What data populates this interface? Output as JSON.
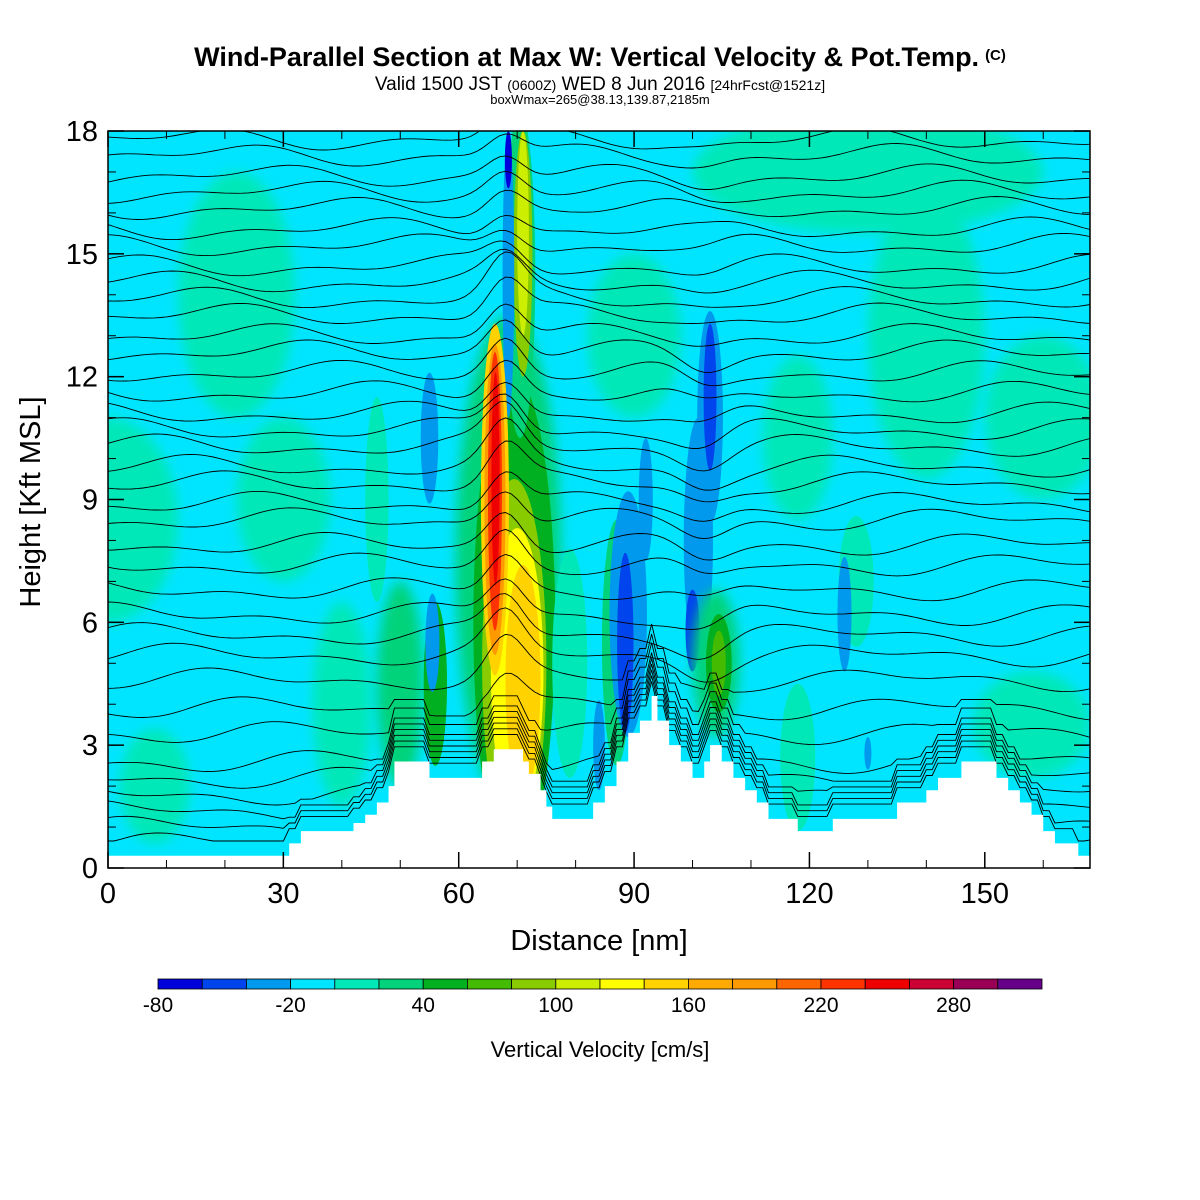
{
  "header": {
    "title": "Wind-Parallel Section at Max W: Vertical Velocity & Pot.Temp.",
    "title_tag": "(C)",
    "valid_prefix": "Valid 1500 JST",
    "valid_zulu": "(0600Z)",
    "valid_date": "WED 8 Jun 2016",
    "forecast": "[24hrFcst@1521z]",
    "boxline": "boxWmax=265@38.13,139.87,2185m"
  },
  "chart_data": {
    "type": "heatmap",
    "xlabel": "Distance [nm]",
    "ylabel": "Height [Kft MSL]",
    "xlim": [
      0,
      168
    ],
    "ylim": [
      0,
      18
    ],
    "x_ticks": [
      0,
      30,
      60,
      90,
      120,
      150
    ],
    "y_ticks": [
      0,
      3,
      6,
      9,
      12,
      15,
      18
    ],
    "x_tick_labels": [
      "0",
      "30",
      "60",
      "90",
      "120",
      "150"
    ],
    "y_tick_labels": [
      "0",
      "3",
      "6",
      "9",
      "12",
      "15",
      "18"
    ],
    "colorbar": {
      "title": "Vertical Velocity [cm/s]",
      "levels": [
        -80,
        -60,
        -40,
        -20,
        0,
        20,
        40,
        60,
        80,
        100,
        120,
        140,
        160,
        180,
        200,
        220,
        240,
        260,
        280,
        300,
        320
      ],
      "colors": [
        "#0000dd",
        "#0044ee",
        "#0099ee",
        "#00e5ff",
        "#00e8b8",
        "#00d37a",
        "#00b020",
        "#44bb00",
        "#88cc00",
        "#ccee00",
        "#ffff00",
        "#ffd200",
        "#ffaa00",
        "#ff9900",
        "#ff6600",
        "#ff3300",
        "#ee0000",
        "#cc0033",
        "#990055",
        "#660088"
      ],
      "tick_values": [
        -80,
        -20,
        40,
        100,
        160,
        220,
        280
      ],
      "tick_labels": [
        "-80",
        "-20",
        "40",
        "100",
        "160",
        "220",
        "280"
      ]
    },
    "terrain_kft": [
      [
        0,
        0.3
      ],
      [
        30,
        0.3
      ],
      [
        31,
        0.6
      ],
      [
        33,
        0.9
      ],
      [
        41,
        0.9
      ],
      [
        42,
        1.1
      ],
      [
        44,
        1.3
      ],
      [
        46,
        1.6
      ],
      [
        48,
        2.0
      ],
      [
        49,
        2.6
      ],
      [
        53,
        2.6
      ],
      [
        55,
        2.2
      ],
      [
        63,
        2.2
      ],
      [
        64,
        2.6
      ],
      [
        66,
        2.9
      ],
      [
        69,
        2.9
      ],
      [
        71,
        2.6
      ],
      [
        72,
        2.3
      ],
      [
        74,
        1.9
      ],
      [
        75,
        1.5
      ],
      [
        76,
        1.2
      ],
      [
        81,
        1.2
      ],
      [
        83,
        1.6
      ],
      [
        85,
        2.0
      ],
      [
        87,
        2.6
      ],
      [
        89,
        3.3
      ],
      [
        91,
        3.6
      ],
      [
        93,
        4.2
      ],
      [
        94,
        3.6
      ],
      [
        96,
        3.0
      ],
      [
        98,
        2.6
      ],
      [
        100,
        2.2
      ],
      [
        102,
        2.6
      ],
      [
        103,
        3.0
      ],
      [
        105,
        2.6
      ],
      [
        107,
        2.2
      ],
      [
        109,
        1.9
      ],
      [
        111,
        1.6
      ],
      [
        113,
        1.2
      ],
      [
        116,
        1.2
      ],
      [
        118,
        0.9
      ],
      [
        123,
        0.9
      ],
      [
        124,
        1.2
      ],
      [
        134,
        1.2
      ],
      [
        135,
        1.6
      ],
      [
        140,
        1.9
      ],
      [
        142,
        2.2
      ],
      [
        146,
        2.6
      ],
      [
        150,
        2.6
      ],
      [
        152,
        2.2
      ],
      [
        154,
        1.9
      ],
      [
        156,
        1.6
      ],
      [
        158,
        1.3
      ],
      [
        160,
        0.9
      ],
      [
        162,
        0.6
      ],
      [
        166,
        0.3
      ],
      [
        168,
        0.3
      ]
    ],
    "velocity_cells": [
      {
        "x": 0,
        "y": 8.5,
        "rx": 12,
        "ry": 2.5,
        "value": 10
      },
      {
        "x": 22,
        "y": 14,
        "rx": 10,
        "ry": 3,
        "value": 10
      },
      {
        "x": 30,
        "y": 9,
        "rx": 8,
        "ry": 2,
        "value": 10
      },
      {
        "x": 40,
        "y": 4,
        "rx": 5,
        "ry": 2.5,
        "value": 10
      },
      {
        "x": 8,
        "y": 2,
        "rx": 6,
        "ry": 1.4,
        "value": 10
      },
      {
        "x": 50,
        "y": 4.5,
        "rx": 4,
        "ry": 2.5,
        "value": 30
      },
      {
        "x": 56,
        "y": 4.5,
        "rx": 2,
        "ry": 2,
        "value": 50
      },
      {
        "x": 46,
        "y": 9,
        "rx": 2,
        "ry": 2.5,
        "value": 10
      },
      {
        "x": 55,
        "y": 10.5,
        "rx": 1.5,
        "ry": 1.6,
        "value": -30
      },
      {
        "x": 55.5,
        "y": 5.5,
        "rx": 1.2,
        "ry": 1.2,
        "value": -30
      },
      {
        "x": 68.5,
        "y": 7.5,
        "rx": 9,
        "ry": 6,
        "value": 30
      },
      {
        "x": 69.5,
        "y": 6,
        "rx": 7,
        "ry": 6,
        "value": 50
      },
      {
        "x": 69.5,
        "y": 5,
        "rx": 5.5,
        "ry": 4.5,
        "value": 90
      },
      {
        "x": 70,
        "y": 4.8,
        "rx": 4.5,
        "ry": 3.5,
        "value": 130
      },
      {
        "x": 71,
        "y": 4.6,
        "rx": 3,
        "ry": 2.8,
        "value": 150
      },
      {
        "x": 70.5,
        "y": 14.5,
        "rx": 2.6,
        "ry": 4,
        "value": 30
      },
      {
        "x": 71,
        "y": 15,
        "rx": 1.6,
        "ry": 3,
        "value": 90
      },
      {
        "x": 71,
        "y": 15.5,
        "rx": 1.0,
        "ry": 2.5,
        "value": 110
      },
      {
        "x": 68.5,
        "y": 14.5,
        "rx": 1.0,
        "ry": 3.5,
        "value": -30
      },
      {
        "x": 68.5,
        "y": 17.3,
        "rx": 0.6,
        "ry": 0.7,
        "value": -70
      },
      {
        "x": 66.2,
        "y": 9,
        "rx": 2.4,
        "ry": 4.3,
        "value": 150
      },
      {
        "x": 66.2,
        "y": 9,
        "rx": 1.8,
        "ry": 3.8,
        "value": 190
      },
      {
        "x": 66.2,
        "y": 9.2,
        "rx": 1.2,
        "ry": 3.4,
        "value": 230
      },
      {
        "x": 66.3,
        "y": 9.5,
        "rx": 0.7,
        "ry": 2.6,
        "value": 250
      },
      {
        "x": 79,
        "y": 5,
        "rx": 3,
        "ry": 2.8,
        "value": 10
      },
      {
        "x": 87,
        "y": 5.5,
        "rx": 2.5,
        "ry": 3,
        "value": 30
      },
      {
        "x": 84,
        "y": 3,
        "rx": 1,
        "ry": 1.1,
        "value": -30
      },
      {
        "x": 89,
        "y": 6.2,
        "rx": 3.2,
        "ry": 3,
        "value": -30
      },
      {
        "x": 88.5,
        "y": 5.5,
        "rx": 1.4,
        "ry": 2.2,
        "value": -50
      },
      {
        "x": 92,
        "y": 9,
        "rx": 1.2,
        "ry": 1.5,
        "value": -30
      },
      {
        "x": 101,
        "y": 8,
        "rx": 2.5,
        "ry": 3,
        "value": -30
      },
      {
        "x": 100,
        "y": 5.8,
        "rx": 1.2,
        "ry": 1,
        "value": -50
      },
      {
        "x": 103,
        "y": 11,
        "rx": 2.2,
        "ry": 2.6,
        "value": -30
      },
      {
        "x": 103,
        "y": 11.5,
        "rx": 1.1,
        "ry": 1.8,
        "value": -50
      },
      {
        "x": 104,
        "y": 5,
        "rx": 4,
        "ry": 1.8,
        "value": 30
      },
      {
        "x": 104.5,
        "y": 5,
        "rx": 2.2,
        "ry": 1.2,
        "value": 50
      },
      {
        "x": 104.5,
        "y": 5,
        "rx": 1.2,
        "ry": 0.8,
        "value": 70
      },
      {
        "x": 118,
        "y": 10.5,
        "rx": 6,
        "ry": 2,
        "value": 10
      },
      {
        "x": 128,
        "y": 7,
        "rx": 3,
        "ry": 1.6,
        "value": 10
      },
      {
        "x": 126,
        "y": 6.2,
        "rx": 1.2,
        "ry": 1.4,
        "value": -30
      },
      {
        "x": 130,
        "y": 2.8,
        "rx": 0.6,
        "ry": 0.4,
        "value": -30
      },
      {
        "x": 118,
        "y": 2.7,
        "rx": 3,
        "ry": 1.8,
        "value": 10
      },
      {
        "x": 158,
        "y": 3.5,
        "rx": 10,
        "ry": 1.3,
        "value": 10
      },
      {
        "x": 140,
        "y": 13,
        "rx": 10,
        "ry": 3.5,
        "value": 10
      },
      {
        "x": 160,
        "y": 11,
        "rx": 10,
        "ry": 2,
        "value": 10
      },
      {
        "x": 130,
        "y": 17,
        "rx": 30,
        "ry": 1.5,
        "value": 10
      },
      {
        "x": 90,
        "y": 13,
        "rx": 8,
        "ry": 2,
        "value": 10
      }
    ],
    "isentrope_kft": [
      0.6,
      1.0,
      1.4,
      1.8,
      2.2,
      2.6,
      3.3,
      3.9,
      4.6,
      5.2,
      5.7,
      6.2,
      6.8,
      7.4,
      7.9,
      8.5,
      8.9,
      9.4,
      9.8,
      10.3,
      10.7,
      11.1,
      11.6,
      12.1,
      12.6,
      13.0,
      13.5,
      13.9,
      14.3,
      14.7,
      15.2,
      15.6,
      16.1,
      16.5,
      16.9,
      17.4,
      17.8
    ]
  }
}
